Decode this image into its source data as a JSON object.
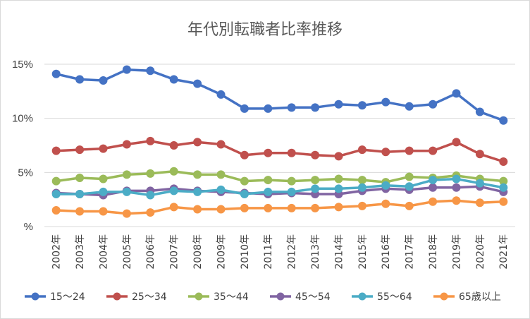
{
  "chart_data": {
    "type": "line",
    "title": "年代別転職者比率推移",
    "xlabel": "",
    "ylabel": "",
    "categories": [
      "2002年",
      "2003年",
      "2004年",
      "2005年",
      "2006年",
      "2007年",
      "2008年",
      "2009年",
      "2010年",
      "2011年",
      "2012年",
      "2013年",
      "2014年",
      "2015年",
      "2016年",
      "2017年",
      "2018年",
      "2019年",
      "2020年",
      "2021年"
    ],
    "y_ticks": [
      {
        "value": 0,
        "label": "%"
      },
      {
        "value": 5,
        "label": "5%"
      },
      {
        "value": 10,
        "label": "10%"
      },
      {
        "value": 15,
        "label": "15%"
      }
    ],
    "ylim": [
      0,
      15
    ],
    "grid": true,
    "legend_position": "bottom",
    "series": [
      {
        "name": "15～24",
        "color": "#4472c4",
        "values": [
          14.1,
          13.6,
          13.5,
          14.5,
          14.4,
          13.6,
          13.2,
          12.2,
          10.9,
          10.9,
          11.0,
          11.0,
          11.3,
          11.2,
          11.5,
          11.1,
          11.3,
          12.3,
          10.6,
          9.8
        ]
      },
      {
        "name": "25～34",
        "color": "#c0504d",
        "values": [
          7.0,
          7.1,
          7.2,
          7.6,
          7.9,
          7.5,
          7.8,
          7.6,
          6.6,
          6.8,
          6.8,
          6.6,
          6.5,
          7.1,
          6.9,
          7.0,
          7.0,
          7.8,
          6.7,
          6.0
        ]
      },
      {
        "name": "35～44",
        "color": "#9bbb59",
        "values": [
          4.2,
          4.5,
          4.4,
          4.8,
          4.9,
          5.1,
          4.8,
          4.8,
          4.2,
          4.3,
          4.2,
          4.3,
          4.4,
          4.3,
          4.1,
          4.6,
          4.5,
          4.7,
          4.4,
          4.2
        ]
      },
      {
        "name": "45～54",
        "color": "#8064a2",
        "values": [
          3.1,
          3.0,
          2.9,
          3.3,
          3.3,
          3.5,
          3.3,
          3.2,
          3.1,
          3.0,
          3.1,
          3.0,
          3.0,
          3.3,
          3.5,
          3.4,
          3.6,
          3.6,
          3.7,
          3.2
        ]
      },
      {
        "name": "55～64",
        "color": "#4bacc6",
        "values": [
          3.0,
          3.0,
          3.2,
          3.2,
          2.9,
          3.3,
          3.2,
          3.4,
          3.0,
          3.2,
          3.2,
          3.5,
          3.5,
          3.6,
          3.8,
          3.7,
          4.3,
          4.4,
          4.0,
          3.6
        ]
      },
      {
        "name": "65歳以上",
        "color": "#f79646",
        "values": [
          1.5,
          1.4,
          1.4,
          1.2,
          1.3,
          1.8,
          1.6,
          1.6,
          1.7,
          1.7,
          1.7,
          1.7,
          1.8,
          1.9,
          2.1,
          1.9,
          2.3,
          2.4,
          2.2,
          2.3
        ]
      }
    ]
  }
}
